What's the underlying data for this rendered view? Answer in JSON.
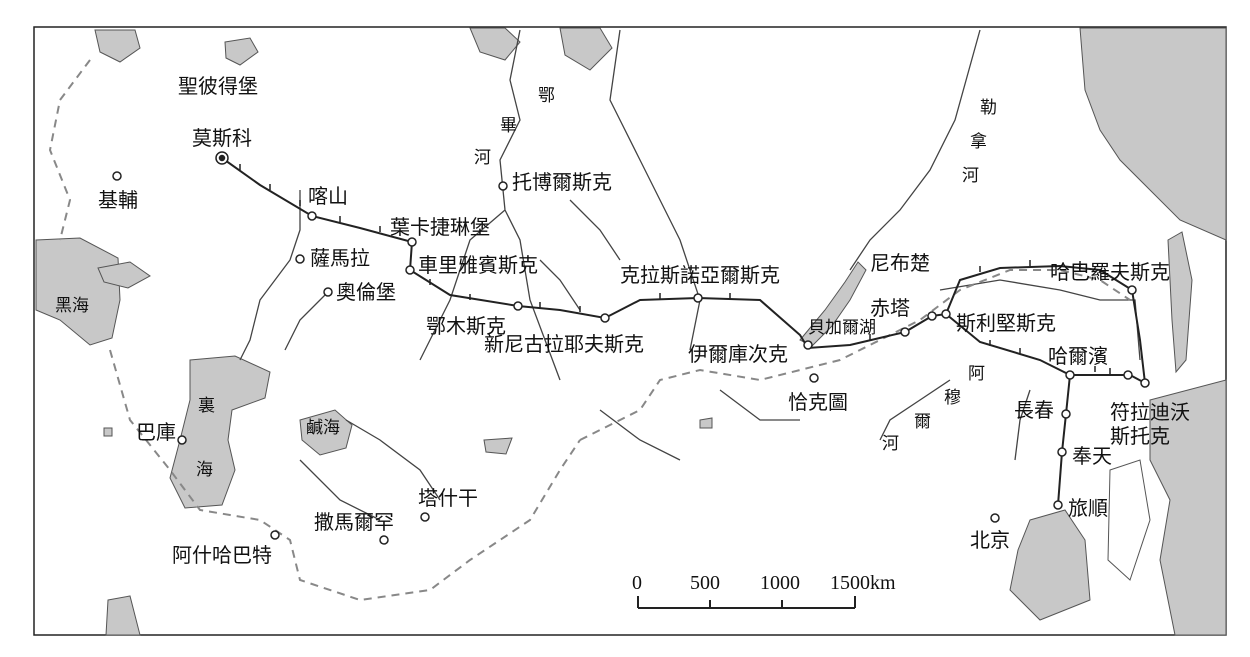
{
  "map": {
    "cities": [
      {
        "id": "st-petersburg",
        "name": "聖彼得堡"
      },
      {
        "id": "moscow",
        "name": "莫斯科"
      },
      {
        "id": "kiev",
        "name": "基輔"
      },
      {
        "id": "kazan",
        "name": "喀山"
      },
      {
        "id": "samara",
        "name": "薩馬拉"
      },
      {
        "id": "orenburg",
        "name": "奧倫堡"
      },
      {
        "id": "yekaterinburg",
        "name": "葉卡捷琳堡"
      },
      {
        "id": "chelyabinsk",
        "name": "車里雅賓斯克"
      },
      {
        "id": "omsk",
        "name": "鄂木斯克"
      },
      {
        "id": "novonikolayevsk",
        "name": "新尼古拉耶夫斯克"
      },
      {
        "id": "tomsk",
        "name": "托博爾斯克"
      },
      {
        "id": "krasnoyarsk",
        "name": "克拉斯諾亞爾斯克"
      },
      {
        "id": "irkutsk",
        "name": "伊爾庫次克"
      },
      {
        "id": "kyakhta",
        "name": "恰克圖"
      },
      {
        "id": "nerchinsk",
        "name": "尼布楚"
      },
      {
        "id": "chita",
        "name": "赤塔"
      },
      {
        "id": "sretensk",
        "name": "斯利堅斯克"
      },
      {
        "id": "khabarovsk",
        "name": "哈巴羅夫斯克"
      },
      {
        "id": "harbin",
        "name": "哈爾濱"
      },
      {
        "id": "vladivostok",
        "name": "符拉迪沃\n斯托克"
      },
      {
        "id": "changchun",
        "name": "長春"
      },
      {
        "id": "mukden",
        "name": "奉天"
      },
      {
        "id": "port-arthur",
        "name": "旅順"
      },
      {
        "id": "beijing",
        "name": "北京"
      },
      {
        "id": "baku",
        "name": "巴庫"
      },
      {
        "id": "ashgabat",
        "name": "阿什哈巴特"
      },
      {
        "id": "samarkand",
        "name": "撒馬爾罕"
      },
      {
        "id": "tashkent",
        "name": "塔什干"
      }
    ],
    "water": {
      "black_sea": "黑海",
      "caspian_1": "裏",
      "caspian_2": "海",
      "aral": "鹹海",
      "baikal": "貝加爾湖"
    },
    "rivers": {
      "ob": [
        "鄂",
        "畢",
        "河"
      ],
      "lena": [
        "勒",
        "拿",
        "河"
      ],
      "amur": [
        "阿",
        "穆",
        "爾",
        "河"
      ]
    },
    "scale": {
      "ticks": [
        "0",
        "500",
        "1000",
        "1500km"
      ]
    }
  }
}
